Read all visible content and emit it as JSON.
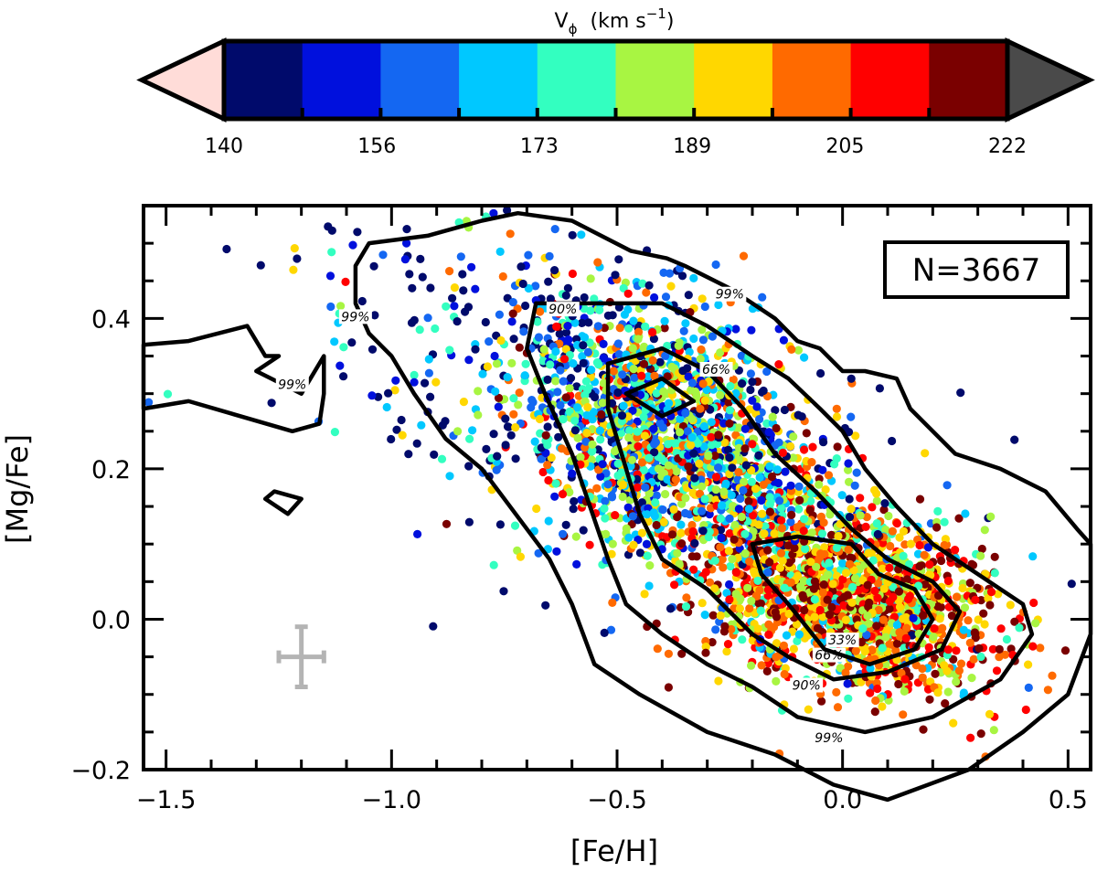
{
  "chart_data": {
    "type": "scatter",
    "xlabel": "[Fe/H]",
    "ylabel": "[Mg/Fe]",
    "xlim": [
      -1.55,
      0.55
    ],
    "ylim": [
      -0.2,
      0.55
    ],
    "x_ticks": [
      -1.5,
      -1.0,
      -0.5,
      0.0,
      0.5
    ],
    "x_tick_labels": [
      "−1.5",
      "−1.0",
      "−0.5",
      "0.0",
      "0.5"
    ],
    "y_ticks": [
      -0.2,
      0.0,
      0.2,
      0.4
    ],
    "y_tick_labels": [
      "−0.2",
      "0.0",
      "0.2",
      "0.4"
    ],
    "grid": false,
    "annotation": "N=3667",
    "colorbar": {
      "title_base": "V",
      "title_sub": "ϕ",
      "title_unit_left": "(km s",
      "title_unit_exp": "−1",
      "title_unit_right": ")",
      "range": [
        140,
        222
      ],
      "tick_values": [
        140,
        156,
        173,
        189,
        205,
        222
      ],
      "tick_labels": [
        "140",
        "156",
        "173",
        "189",
        "205",
        "222"
      ],
      "colors": [
        "#000a6b",
        "#0010dd",
        "#1467f2",
        "#00c8ff",
        "#33ffc0",
        "#a8f542",
        "#ffd700",
        "#ff6a00",
        "#ff0000",
        "#7a0000"
      ],
      "under_color": "#ffdcd8",
      "over_color": "#4a4a4a"
    },
    "contours": [
      {
        "level": "99%",
        "points": [
          [
            -1.55,
            0.365
          ],
          [
            -1.45,
            0.37
          ],
          [
            -1.32,
            0.39
          ],
          [
            -1.28,
            0.35
          ],
          [
            -1.25,
            0.35
          ],
          [
            -1.3,
            0.33
          ],
          [
            -1.2,
            0.3
          ],
          [
            -1.15,
            0.35
          ],
          [
            -1.15,
            0.3
          ],
          [
            -1.16,
            0.26
          ],
          [
            -1.22,
            0.25
          ],
          [
            -1.45,
            0.29
          ],
          [
            -1.55,
            0.28
          ]
        ],
        "labels": [
          {
            "x": -1.22,
            "y": 0.31,
            "text": "99%"
          }
        ]
      },
      {
        "level": "99%",
        "points": [
          [
            -1.28,
            0.16
          ],
          [
            -1.23,
            0.14
          ],
          [
            -1.2,
            0.16
          ],
          [
            -1.26,
            0.17
          ]
        ]
      },
      {
        "level": "99%",
        "points": [
          [
            -1.05,
            0.5
          ],
          [
            -0.92,
            0.51
          ],
          [
            -0.8,
            0.53
          ],
          [
            -0.72,
            0.54
          ],
          [
            -0.6,
            0.53
          ],
          [
            -0.47,
            0.49
          ],
          [
            -0.39,
            0.48
          ],
          [
            -0.35,
            0.47
          ],
          [
            -0.25,
            0.44
          ],
          [
            -0.2,
            0.42
          ],
          [
            -0.15,
            0.4
          ],
          [
            -0.1,
            0.37
          ],
          [
            -0.05,
            0.36
          ],
          [
            0.0,
            0.33
          ],
          [
            0.05,
            0.33
          ],
          [
            0.12,
            0.32
          ],
          [
            0.15,
            0.28
          ],
          [
            0.25,
            0.22
          ],
          [
            0.35,
            0.2
          ],
          [
            0.45,
            0.17
          ],
          [
            0.52,
            0.12
          ],
          [
            0.55,
            0.1
          ],
          [
            0.55,
            -0.02
          ],
          [
            0.5,
            -0.1
          ],
          [
            0.4,
            -0.15
          ],
          [
            0.28,
            -0.2
          ],
          [
            0.1,
            -0.24
          ],
          [
            -0.02,
            -0.22
          ],
          [
            -0.15,
            -0.18
          ],
          [
            -0.3,
            -0.15
          ],
          [
            -0.45,
            -0.1
          ],
          [
            -0.55,
            -0.06
          ],
          [
            -0.6,
            0.02
          ],
          [
            -0.65,
            0.08
          ],
          [
            -0.7,
            0.12
          ],
          [
            -0.75,
            0.16
          ],
          [
            -0.8,
            0.2
          ],
          [
            -0.88,
            0.24
          ],
          [
            -0.95,
            0.3
          ],
          [
            -1.0,
            0.35
          ],
          [
            -1.05,
            0.38
          ],
          [
            -1.08,
            0.42
          ],
          [
            -1.08,
            0.47
          ]
        ],
        "labels": [
          {
            "x": -1.08,
            "y": 0.4,
            "text": "99%"
          },
          {
            "x": -0.25,
            "y": 0.43,
            "text": "99%"
          },
          {
            "x": -0.03,
            "y": -0.16,
            "text": "99%"
          }
        ]
      },
      {
        "level": "90%",
        "points": [
          [
            -0.68,
            0.42
          ],
          [
            -0.55,
            0.42
          ],
          [
            -0.4,
            0.42
          ],
          [
            -0.3,
            0.39
          ],
          [
            -0.2,
            0.35
          ],
          [
            -0.12,
            0.32
          ],
          [
            -0.05,
            0.28
          ],
          [
            0.0,
            0.25
          ],
          [
            0.05,
            0.2
          ],
          [
            0.12,
            0.15
          ],
          [
            0.2,
            0.1
          ],
          [
            0.3,
            0.06
          ],
          [
            0.4,
            0.02
          ],
          [
            0.42,
            -0.02
          ],
          [
            0.35,
            -0.08
          ],
          [
            0.2,
            -0.13
          ],
          [
            0.05,
            -0.15
          ],
          [
            -0.1,
            -0.13
          ],
          [
            -0.2,
            -0.09
          ],
          [
            -0.3,
            -0.06
          ],
          [
            -0.4,
            -0.02
          ],
          [
            -0.48,
            0.02
          ],
          [
            -0.52,
            0.08
          ],
          [
            -0.56,
            0.15
          ],
          [
            -0.6,
            0.22
          ],
          [
            -0.66,
            0.3
          ],
          [
            -0.7,
            0.36
          ]
        ],
        "labels": [
          {
            "x": -0.62,
            "y": 0.41,
            "text": "90%"
          },
          {
            "x": -0.08,
            "y": -0.09,
            "text": "90%"
          }
        ]
      },
      {
        "level": "66%",
        "points": [
          [
            -0.52,
            0.34
          ],
          [
            -0.4,
            0.36
          ],
          [
            -0.3,
            0.33
          ],
          [
            -0.22,
            0.28
          ],
          [
            -0.15,
            0.22
          ],
          [
            -0.06,
            0.17
          ],
          [
            0.02,
            0.12
          ],
          [
            0.1,
            0.08
          ],
          [
            0.2,
            0.05
          ],
          [
            0.26,
            0.01
          ],
          [
            0.22,
            -0.04
          ],
          [
            0.1,
            -0.07
          ],
          [
            -0.02,
            -0.08
          ],
          [
            -0.12,
            -0.05
          ],
          [
            -0.2,
            -0.02
          ],
          [
            -0.3,
            0.04
          ],
          [
            -0.4,
            0.08
          ],
          [
            -0.45,
            0.14
          ],
          [
            -0.48,
            0.2
          ],
          [
            -0.52,
            0.28
          ]
        ],
        "labels": [
          {
            "x": -0.28,
            "y": 0.33,
            "text": "66%"
          },
          {
            "x": -0.03,
            "y": -0.05,
            "text": "66%"
          }
        ]
      },
      {
        "level": "33%",
        "points": [
          [
            -0.48,
            0.3
          ],
          [
            -0.4,
            0.32
          ],
          [
            -0.33,
            0.29
          ],
          [
            -0.4,
            0.27
          ]
        ]
      },
      {
        "level": "33%",
        "points": [
          [
            -0.2,
            0.1
          ],
          [
            -0.1,
            0.11
          ],
          [
            0.02,
            0.1
          ],
          [
            0.08,
            0.06
          ],
          [
            0.16,
            0.04
          ],
          [
            0.2,
            0.0
          ],
          [
            0.16,
            -0.04
          ],
          [
            0.06,
            -0.06
          ],
          [
            -0.04,
            -0.04
          ],
          [
            -0.12,
            0.02
          ],
          [
            -0.18,
            0.06
          ]
        ],
        "labels": [
          {
            "x": 0.0,
            "y": -0.03,
            "text": "33%"
          }
        ]
      }
    ],
    "error_bar": {
      "x": -1.2,
      "y": -0.05,
      "dx": 0.05,
      "dy": 0.04,
      "color": "#b4b4b4"
    }
  }
}
